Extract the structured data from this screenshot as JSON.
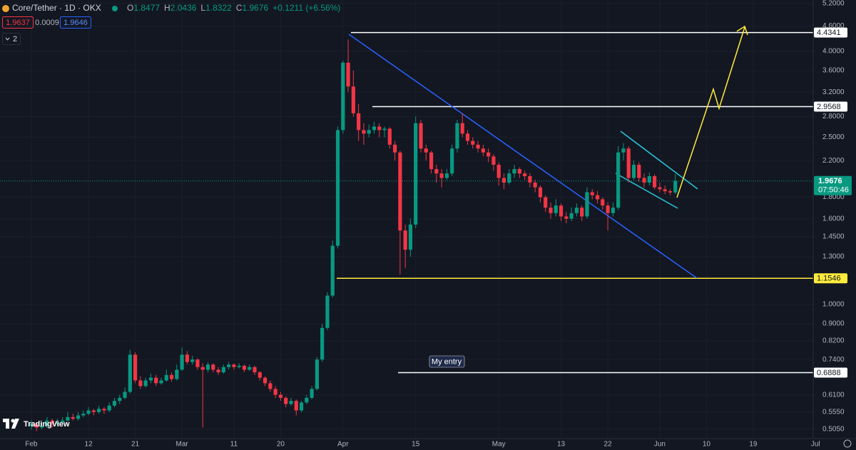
{
  "chart_data": {
    "type": "candlestick",
    "header": {
      "symbol": "Core/Tether · 1D · OKX",
      "o_label": "O",
      "h_label": "H",
      "l_label": "L",
      "c_label": "C",
      "change": "+0.1211 (+6.56%)",
      "sell": "1.9637",
      "spread": "0.0009",
      "buy": "1.9646",
      "indicators": "2"
    },
    "brand": "TradingView",
    "annotation": "My entry",
    "countdown": "07:50:46",
    "up_color": "#089981",
    "down_color": "#f23645",
    "log_scale": true,
    "grid": true,
    "grid_color": "#1b1f2a",
    "ylim": [
      0.48,
      5.3
    ],
    "yticks": [
      {
        "value": 5.2,
        "label": "5.2000"
      },
      {
        "value": 4.6,
        "label": "4.6000"
      },
      {
        "value": 4.0,
        "label": "4.0000"
      },
      {
        "value": 3.6,
        "label": "3.6000"
      },
      {
        "value": 3.2,
        "label": "3.2000"
      },
      {
        "value": 2.8,
        "label": "2.8000"
      },
      {
        "value": 2.5,
        "label": "2.5000"
      },
      {
        "value": 2.2,
        "label": "2.2000"
      },
      {
        "value": 1.8,
        "label": "1.8000"
      },
      {
        "value": 1.6,
        "label": "1.6000"
      },
      {
        "value": 1.45,
        "label": "1.4500"
      },
      {
        "value": 1.3,
        "label": "1.3000"
      },
      {
        "value": 1.0,
        "label": "1.0000"
      },
      {
        "value": 0.9,
        "label": "0.9000"
      },
      {
        "value": 0.82,
        "label": "0.8200"
      },
      {
        "value": 0.74,
        "label": "0.7400"
      },
      {
        "value": 0.61,
        "label": "0.6100"
      },
      {
        "value": 0.555,
        "label": "0.5550"
      },
      {
        "value": 0.505,
        "label": "0.5050"
      }
    ],
    "price_lines": [
      {
        "value": 4.4341,
        "color": "#ffffff"
      },
      {
        "value": 2.9568,
        "color": "#ffffff"
      },
      {
        "value": 1.1546,
        "color": "#ffeb3b"
      },
      {
        "value": 0.6888,
        "color": "#ffffff"
      }
    ],
    "last_price": 1.9676,
    "categories": [
      "Feb",
      null,
      null,
      null,
      null,
      null,
      null,
      null,
      null,
      null,
      null,
      "12",
      null,
      null,
      null,
      null,
      null,
      null,
      null,
      null,
      "21",
      null,
      null,
      null,
      null,
      null,
      null,
      null,
      null,
      "Mar",
      null,
      null,
      null,
      null,
      null,
      null,
      null,
      null,
      null,
      "11",
      null,
      null,
      null,
      null,
      null,
      null,
      null,
      null,
      "20",
      null,
      null,
      null,
      null,
      null,
      null,
      null,
      null,
      null,
      null,
      null,
      "Apr",
      null,
      null,
      null,
      null,
      null,
      null,
      null,
      null,
      null,
      null,
      null,
      null,
      null,
      "15",
      null,
      null,
      null,
      null,
      null,
      null,
      null,
      null,
      null,
      null,
      null,
      null,
      null,
      null,
      null,
      "May",
      null,
      null,
      null,
      null,
      null,
      null,
      null,
      null,
      null,
      null,
      null,
      "13",
      null,
      null,
      null,
      null,
      null,
      null,
      null,
      null,
      "22",
      null,
      null,
      null,
      null,
      null,
      null,
      null,
      null,
      null,
      "Jun",
      null,
      null,
      null,
      null,
      null,
      null,
      null,
      null,
      "10",
      null,
      null,
      null,
      null,
      null,
      null,
      null,
      null,
      "19",
      null,
      null,
      null,
      null,
      null,
      null,
      null,
      null,
      null,
      null,
      null,
      "Jul"
    ],
    "ohlc": [
      [
        0.515,
        0.53,
        0.505,
        0.52
      ],
      [
        0.52,
        0.525,
        0.5,
        0.51
      ],
      [
        0.51,
        0.525,
        0.505,
        0.515
      ],
      [
        0.515,
        0.54,
        0.51,
        0.53
      ],
      [
        0.53,
        0.535,
        0.51,
        0.52
      ],
      [
        0.52,
        0.535,
        0.515,
        0.525
      ],
      [
        0.525,
        0.54,
        0.52,
        0.53
      ],
      [
        0.53,
        0.555,
        0.525,
        0.54
      ],
      [
        0.54,
        0.55,
        0.53,
        0.535
      ],
      [
        0.535,
        0.555,
        0.53,
        0.545
      ],
      [
        0.545,
        0.56,
        0.54,
        0.55
      ],
      [
        0.55,
        0.57,
        0.545,
        0.56
      ],
      [
        0.56,
        0.565,
        0.545,
        0.555
      ],
      [
        0.555,
        0.575,
        0.55,
        0.565
      ],
      [
        0.565,
        0.57,
        0.55,
        0.56
      ],
      [
        0.56,
        0.585,
        0.555,
        0.575
      ],
      [
        0.575,
        0.6,
        0.57,
        0.59
      ],
      [
        0.59,
        0.61,
        0.58,
        0.6
      ],
      [
        0.6,
        0.635,
        0.595,
        0.62
      ],
      [
        0.62,
        0.78,
        0.615,
        0.76
      ],
      [
        0.76,
        0.77,
        0.65,
        0.66
      ],
      [
        0.66,
        0.675,
        0.63,
        0.64
      ],
      [
        0.64,
        0.67,
        0.635,
        0.66
      ],
      [
        0.66,
        0.685,
        0.65,
        0.67
      ],
      [
        0.67,
        0.68,
        0.64,
        0.65
      ],
      [
        0.65,
        0.67,
        0.645,
        0.66
      ],
      [
        0.66,
        0.7,
        0.655,
        0.68
      ],
      [
        0.68,
        0.69,
        0.655,
        0.665
      ],
      [
        0.665,
        0.72,
        0.66,
        0.7
      ],
      [
        0.7,
        0.79,
        0.695,
        0.76
      ],
      [
        0.76,
        0.775,
        0.72,
        0.73
      ],
      [
        0.73,
        0.755,
        0.72,
        0.74
      ],
      [
        0.74,
        0.745,
        0.7,
        0.71
      ],
      [
        0.71,
        0.725,
        0.51,
        0.7
      ],
      [
        0.7,
        0.73,
        0.69,
        0.72
      ],
      [
        0.72,
        0.725,
        0.69,
        0.7
      ],
      [
        0.7,
        0.71,
        0.68,
        0.69
      ],
      [
        0.69,
        0.72,
        0.685,
        0.71
      ],
      [
        0.71,
        0.73,
        0.7,
        0.72
      ],
      [
        0.72,
        0.725,
        0.7,
        0.71
      ],
      [
        0.71,
        0.725,
        0.705,
        0.715
      ],
      [
        0.715,
        0.72,
        0.69,
        0.7
      ],
      [
        0.7,
        0.72,
        0.695,
        0.71
      ],
      [
        0.71,
        0.715,
        0.68,
        0.69
      ],
      [
        0.69,
        0.695,
        0.66,
        0.67
      ],
      [
        0.67,
        0.675,
        0.64,
        0.65
      ],
      [
        0.65,
        0.66,
        0.62,
        0.63
      ],
      [
        0.63,
        0.64,
        0.6,
        0.61
      ],
      [
        0.61,
        0.62,
        0.59,
        0.6
      ],
      [
        0.6,
        0.605,
        0.57,
        0.58
      ],
      [
        0.58,
        0.6,
        0.575,
        0.59
      ],
      [
        0.59,
        0.595,
        0.545,
        0.56
      ],
      [
        0.56,
        0.59,
        0.555,
        0.585
      ],
      [
        0.585,
        0.61,
        0.58,
        0.6
      ],
      [
        0.6,
        0.64,
        0.595,
        0.63
      ],
      [
        0.63,
        0.75,
        0.625,
        0.74
      ],
      [
        0.74,
        0.9,
        0.73,
        0.88
      ],
      [
        0.88,
        1.07,
        0.87,
        1.05
      ],
      [
        1.05,
        1.42,
        1.04,
        1.38
      ],
      [
        1.38,
        2.65,
        1.36,
        2.6
      ],
      [
        2.6,
        3.8,
        2.55,
        3.76
      ],
      [
        3.76,
        4.27,
        3.2,
        3.3
      ],
      [
        3.3,
        3.6,
        2.8,
        2.85
      ],
      [
        2.85,
        3.0,
        2.45,
        2.6
      ],
      [
        2.6,
        2.7,
        2.4,
        2.55
      ],
      [
        2.55,
        2.68,
        2.5,
        2.6
      ],
      [
        2.6,
        2.72,
        2.55,
        2.65
      ],
      [
        2.65,
        2.7,
        2.5,
        2.6
      ],
      [
        2.6,
        2.65,
        2.5,
        2.62
      ],
      [
        2.62,
        2.64,
        2.35,
        2.4
      ],
      [
        2.4,
        2.45,
        2.2,
        2.3
      ],
      [
        2.3,
        2.32,
        1.18,
        1.5
      ],
      [
        1.5,
        1.55,
        1.22,
        1.35
      ],
      [
        1.35,
        1.6,
        1.3,
        1.55
      ],
      [
        1.55,
        2.8,
        1.52,
        2.7
      ],
      [
        2.7,
        2.75,
        2.3,
        2.35
      ],
      [
        2.35,
        2.4,
        2.2,
        2.3
      ],
      [
        2.3,
        2.32,
        2.05,
        2.1
      ],
      [
        2.1,
        2.15,
        1.95,
        2.05
      ],
      [
        2.05,
        2.1,
        1.9,
        2.0
      ],
      [
        2.0,
        2.1,
        1.98,
        2.05
      ],
      [
        2.05,
        2.4,
        2.02,
        2.35
      ],
      [
        2.35,
        2.75,
        2.3,
        2.7
      ],
      [
        2.7,
        2.85,
        2.5,
        2.55
      ],
      [
        2.55,
        2.6,
        2.4,
        2.45
      ],
      [
        2.45,
        2.5,
        2.35,
        2.4
      ],
      [
        2.4,
        2.45,
        2.3,
        2.35
      ],
      [
        2.35,
        2.4,
        2.25,
        2.3
      ],
      [
        2.3,
        2.35,
        2.18,
        2.25
      ],
      [
        2.25,
        2.28,
        2.08,
        2.15
      ],
      [
        2.15,
        2.18,
        1.92,
        2.0
      ],
      [
        2.0,
        2.05,
        1.88,
        1.95
      ],
      [
        1.95,
        2.1,
        1.93,
        2.05
      ],
      [
        2.05,
        2.15,
        2.0,
        2.1
      ],
      [
        2.1,
        2.12,
        2.0,
        2.05
      ],
      [
        2.05,
        2.08,
        1.98,
        2.02
      ],
      [
        2.02,
        2.05,
        1.9,
        1.95
      ],
      [
        1.95,
        1.98,
        1.85,
        1.9
      ],
      [
        1.9,
        1.92,
        1.75,
        1.8
      ],
      [
        1.8,
        1.82,
        1.66,
        1.7
      ],
      [
        1.7,
        1.75,
        1.6,
        1.65
      ],
      [
        1.65,
        1.78,
        1.62,
        1.72
      ],
      [
        1.72,
        1.74,
        1.58,
        1.62
      ],
      [
        1.62,
        1.66,
        1.56,
        1.6
      ],
      [
        1.6,
        1.7,
        1.58,
        1.65
      ],
      [
        1.65,
        1.74,
        1.62,
        1.7
      ],
      [
        1.7,
        1.72,
        1.58,
        1.62
      ],
      [
        1.62,
        1.9,
        1.6,
        1.85
      ],
      [
        1.85,
        1.88,
        1.78,
        1.82
      ],
      [
        1.82,
        1.86,
        1.74,
        1.78
      ],
      [
        1.78,
        1.8,
        1.68,
        1.72
      ],
      [
        1.72,
        1.75,
        1.5,
        1.65
      ],
      [
        1.65,
        1.75,
        1.62,
        1.7
      ],
      [
        1.7,
        2.38,
        1.68,
        2.3
      ],
      [
        2.3,
        2.42,
        2.2,
        2.35
      ],
      [
        2.35,
        2.38,
        1.95,
        2.0
      ],
      [
        2.0,
        2.2,
        1.98,
        2.15
      ],
      [
        2.15,
        2.18,
        1.96,
        2.0
      ],
      [
        2.0,
        2.05,
        1.9,
        1.95
      ],
      [
        1.95,
        2.06,
        1.92,
        2.02
      ],
      [
        2.02,
        2.04,
        1.88,
        1.9
      ],
      [
        1.9,
        1.95,
        1.85,
        1.88
      ],
      [
        1.88,
        1.92,
        1.83,
        1.86
      ],
      [
        1.86,
        1.88,
        1.82,
        1.847
      ],
      [
        1.8477,
        2.0436,
        1.8322,
        1.9676
      ],
      null,
      null,
      null,
      null,
      null,
      null,
      null,
      null,
      null,
      null,
      null,
      null,
      null,
      null,
      null,
      null,
      null,
      null,
      null,
      null,
      null,
      null,
      null,
      null,
      null,
      null,
      null
    ]
  }
}
